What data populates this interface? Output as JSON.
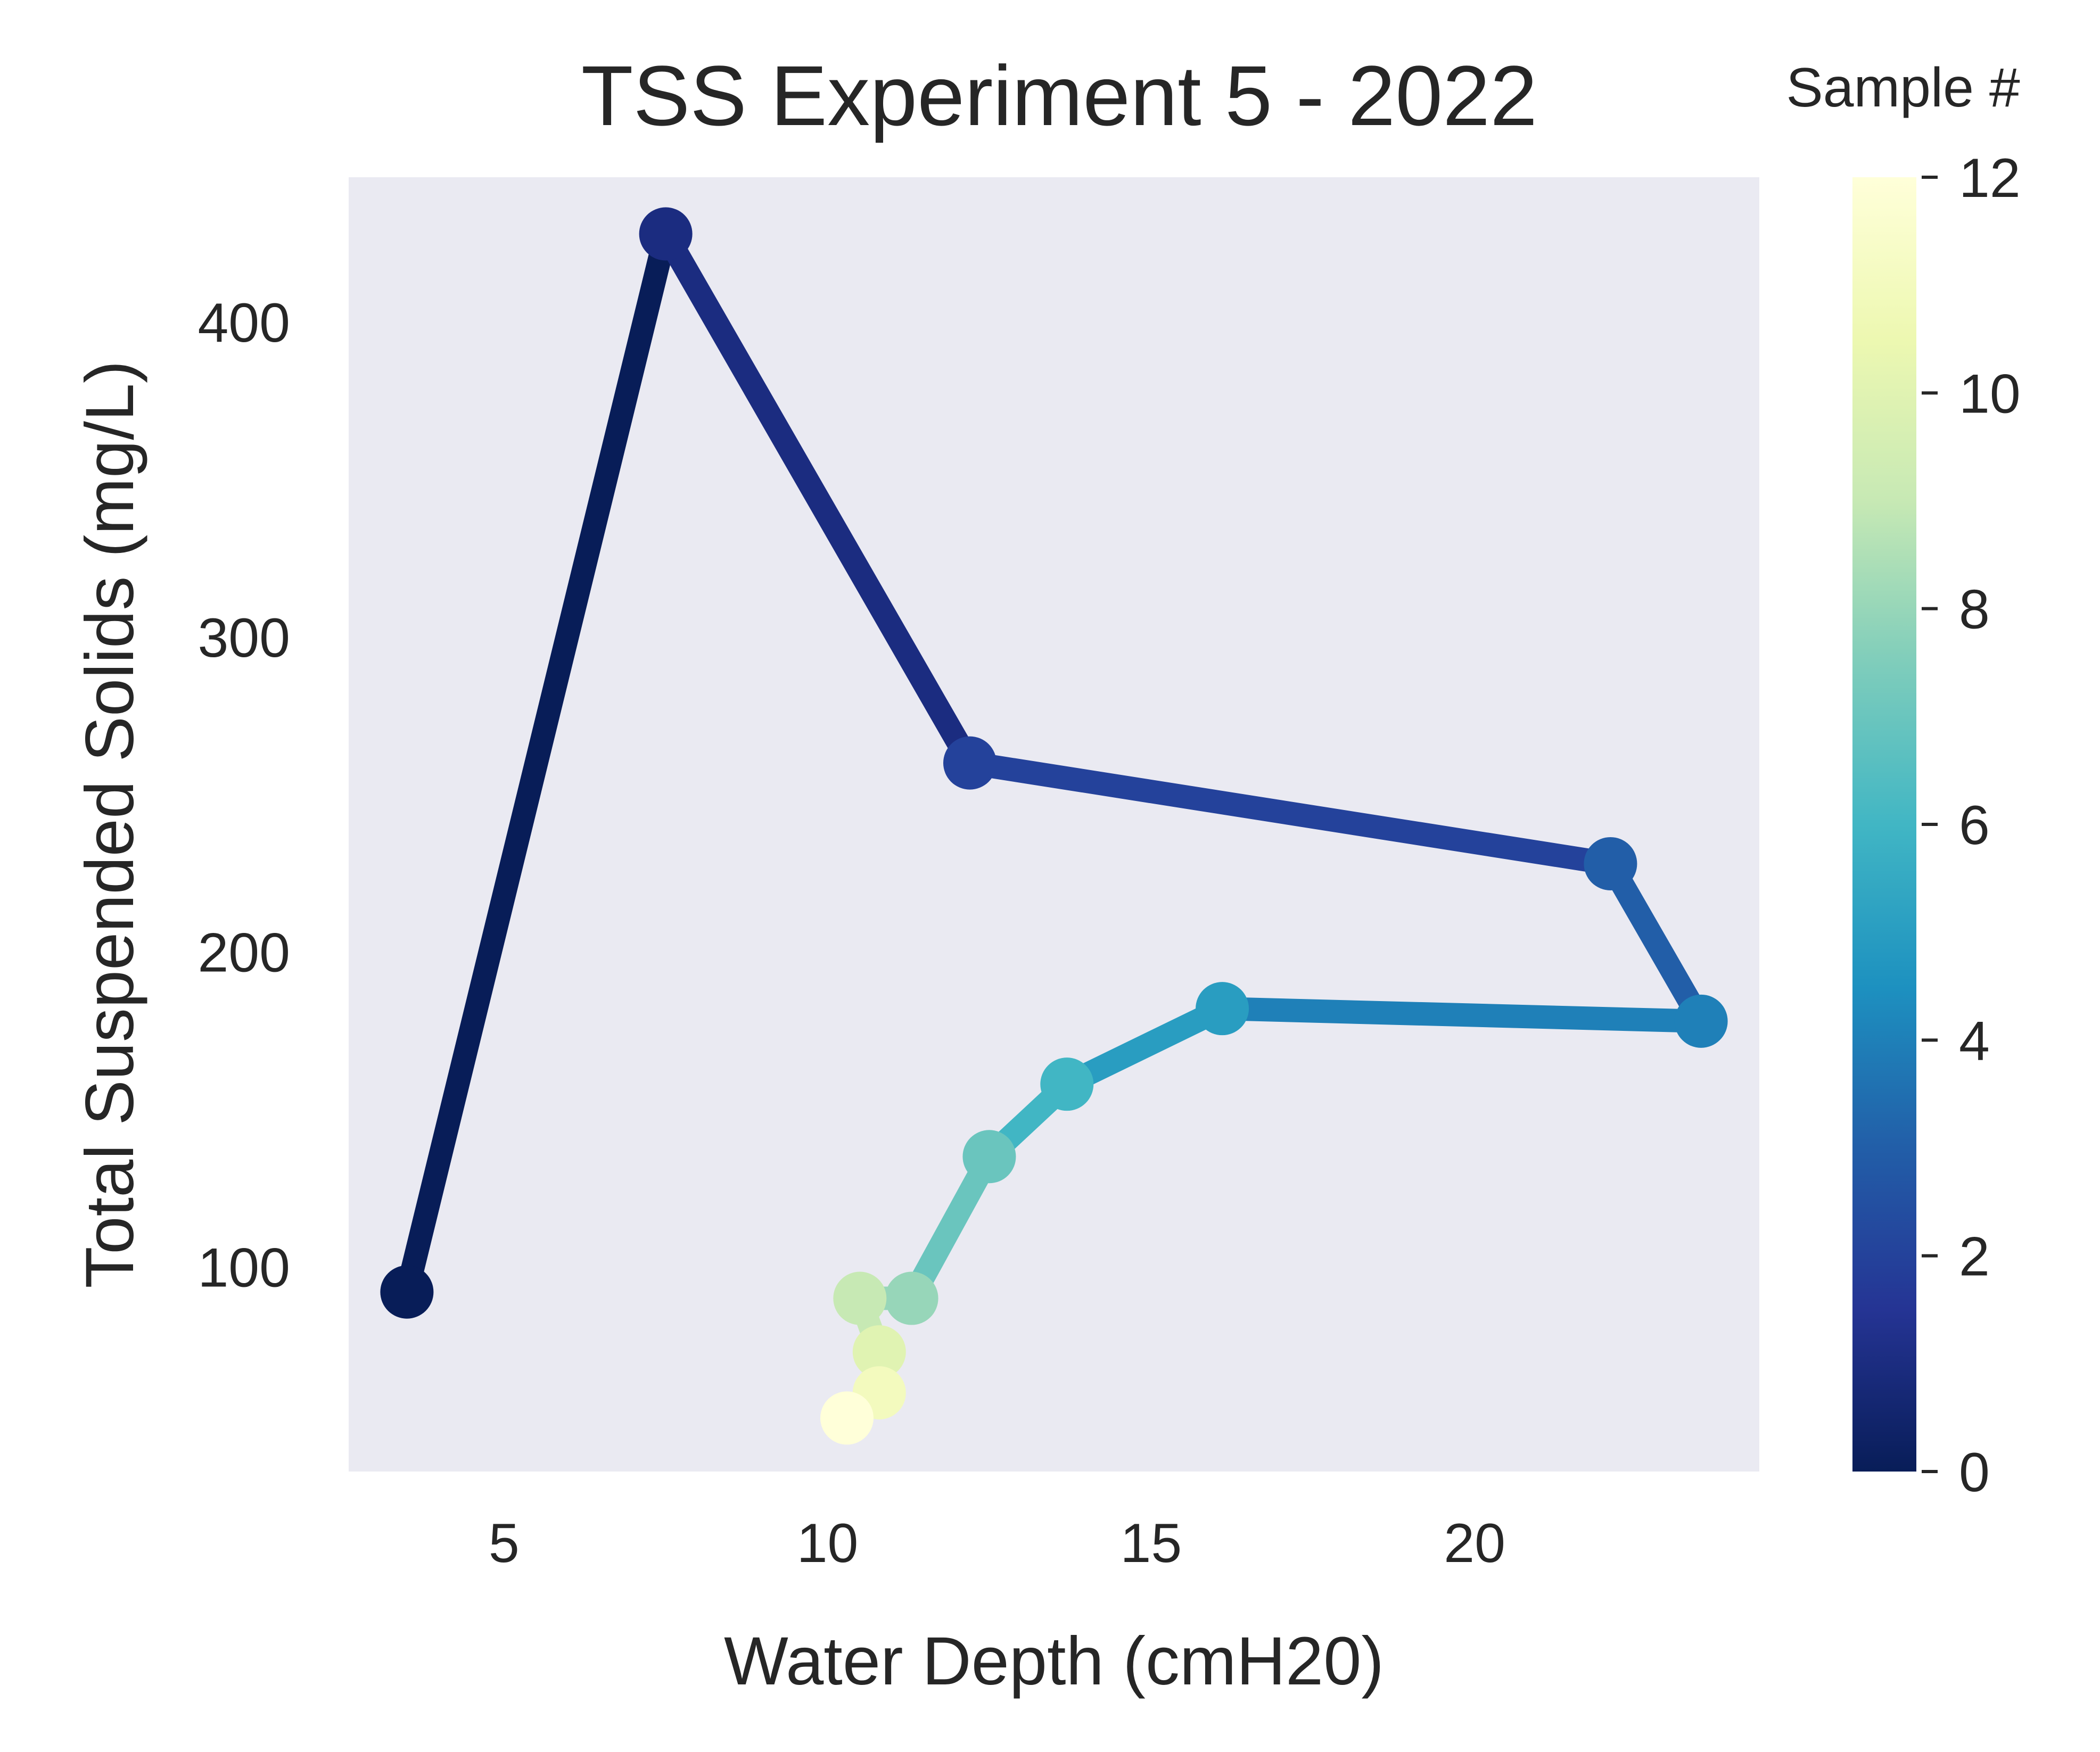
{
  "chart_data": {
    "type": "line",
    "title": "TSS Experiment 5 - 2022",
    "xlabel": "Water Depth (cmH20)",
    "ylabel": "Total Suspended Solids (mg/L)",
    "xlim": [
      2.6,
      24.4
    ],
    "ylim": [
      35,
      446
    ],
    "xticks": [
      5,
      10,
      15,
      20
    ],
    "yticks": [
      100,
      200,
      300,
      400
    ],
    "grid": false,
    "background": "#eaeaf2",
    "colormap": "YlGnBu_r",
    "colorbar": {
      "label": "Sample #",
      "range": [
        0,
        12
      ],
      "ticks": [
        0,
        2,
        4,
        6,
        8,
        10,
        12
      ]
    },
    "points": [
      {
        "sample": 0,
        "x": 3.5,
        "y": 92
      },
      {
        "sample": 1,
        "x": 7.5,
        "y": 428
      },
      {
        "sample": 2,
        "x": 12.2,
        "y": 260
      },
      {
        "sample": 3,
        "x": 22.1,
        "y": 228
      },
      {
        "sample": 4,
        "x": 23.5,
        "y": 178
      },
      {
        "sample": 5,
        "x": 16.1,
        "y": 182
      },
      {
        "sample": 6,
        "x": 13.7,
        "y": 158
      },
      {
        "sample": 7,
        "x": 12.5,
        "y": 135
      },
      {
        "sample": 8,
        "x": 11.3,
        "y": 90
      },
      {
        "sample": 9,
        "x": 10.5,
        "y": 90
      },
      {
        "sample": 10,
        "x": 10.8,
        "y": 73
      },
      {
        "sample": 11,
        "x": 10.8,
        "y": 60
      },
      {
        "sample": 12,
        "x": 10.3,
        "y": 52
      }
    ]
  }
}
